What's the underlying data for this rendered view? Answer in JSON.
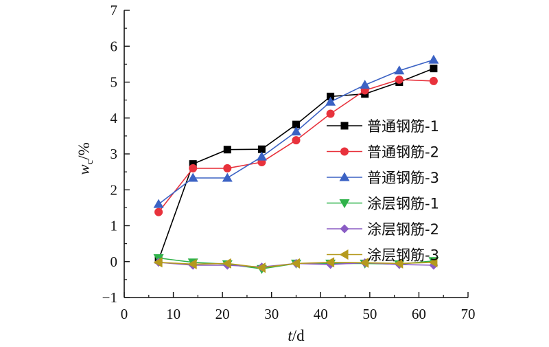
{
  "chart_data": {
    "type": "line",
    "xlabel": "t/d",
    "ylabel": "wc/%",
    "xlim": [
      0,
      70
    ],
    "ylim": [
      -1,
      7
    ],
    "x_ticks": [
      0,
      10,
      20,
      30,
      40,
      50,
      60,
      70
    ],
    "y_ticks": [
      -1,
      0,
      1,
      2,
      3,
      4,
      5,
      6,
      7
    ],
    "grid": false,
    "legend_position": "right",
    "series": [
      {
        "name": "普通钢筋-1",
        "color": "#000000",
        "marker": "square",
        "x": [
          7,
          14,
          21,
          28,
          35,
          42,
          49,
          56,
          63
        ],
        "y": [
          0.05,
          2.72,
          3.12,
          3.13,
          3.82,
          4.6,
          4.67,
          5.0,
          5.38
        ]
      },
      {
        "name": "普通钢筋-2",
        "color": "#e8323c",
        "marker": "circle",
        "x": [
          7,
          14,
          21,
          28,
          35,
          42,
          49,
          56,
          63
        ],
        "y": [
          1.38,
          2.6,
          2.6,
          2.77,
          3.38,
          4.12,
          4.77,
          5.07,
          5.03
        ]
      },
      {
        "name": "普通钢筋-3",
        "color": "#3b62c4",
        "marker": "triangle-up",
        "x": [
          7,
          14,
          21,
          28,
          35,
          42,
          49,
          56,
          63
        ],
        "y": [
          1.6,
          2.33,
          2.33,
          2.92,
          3.62,
          4.45,
          4.92,
          5.32,
          5.62
        ]
      },
      {
        "name": "涂层钢筋-1",
        "color": "#2fb24a",
        "marker": "triangle-down",
        "x": [
          7,
          14,
          21,
          28,
          35,
          42,
          49,
          56,
          63
        ],
        "y": [
          0.1,
          -0.02,
          -0.07,
          -0.2,
          -0.05,
          -0.05,
          -0.05,
          -0.07,
          0.02
        ]
      },
      {
        "name": "涂层钢筋-2",
        "color": "#8a5cc4",
        "marker": "diamond",
        "x": [
          7,
          14,
          21,
          28,
          35,
          42,
          49,
          56,
          63
        ],
        "y": [
          -0.02,
          -0.1,
          -0.1,
          -0.15,
          -0.05,
          -0.08,
          -0.03,
          -0.08,
          -0.1
        ]
      },
      {
        "name": "涂层钢筋-3",
        "color": "#b59a1e",
        "marker": "triangle-left",
        "x": [
          7,
          14,
          21,
          28,
          35,
          42,
          49,
          56,
          63
        ],
        "y": [
          -0.02,
          -0.07,
          -0.05,
          -0.17,
          -0.05,
          -0.02,
          -0.03,
          -0.05,
          -0.02
        ]
      }
    ]
  }
}
